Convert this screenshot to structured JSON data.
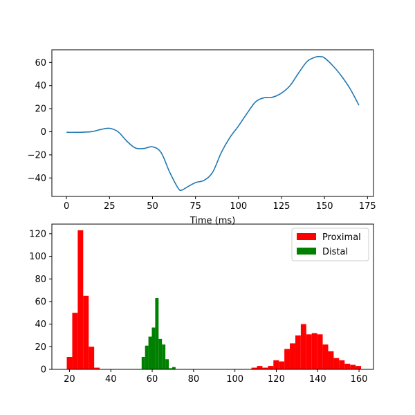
{
  "chart_data": [
    {
      "type": "line",
      "xlabel": "Time (ms)",
      "ylabel": "",
      "xlim": [
        -8.5,
        178.5
      ],
      "ylim": [
        -56,
        71
      ],
      "xticks": [
        0,
        25,
        50,
        75,
        100,
        125,
        150,
        175
      ],
      "yticks": [
        -40,
        -20,
        0,
        20,
        40,
        60
      ],
      "series": [
        {
          "color": "#1f77b4",
          "x": [
            0,
            5,
            10,
            15,
            20,
            25,
            30,
            35,
            40,
            45,
            50,
            55,
            60,
            65,
            67,
            70,
            75,
            80,
            85,
            90,
            95,
            100,
            105,
            110,
            115,
            120,
            125,
            130,
            135,
            140,
            145,
            148,
            150,
            155,
            160,
            165,
            170
          ],
          "y": [
            -0.5,
            -0.5,
            -0.3,
            0.2,
            2,
            3,
            0,
            -8,
            -14,
            -14.5,
            -13,
            -18,
            -35,
            -49,
            -50.5,
            -48,
            -44,
            -42,
            -35,
            -18,
            -5,
            5,
            16,
            26,
            29.5,
            30,
            33.5,
            40,
            51,
            61,
            64.8,
            65,
            64,
            57,
            48,
            37,
            23
          ]
        }
      ]
    },
    {
      "type": "bar",
      "histogram": true,
      "xlabel": "",
      "ylabel": "",
      "xlim": [
        11.5,
        167
      ],
      "ylim": [
        0,
        128.5
      ],
      "xticks": [
        20,
        40,
        60,
        80,
        100,
        120,
        140,
        160
      ],
      "yticks": [
        0,
        20,
        40,
        60,
        80,
        100,
        120
      ],
      "legend": "top-right",
      "series": [
        {
          "name": "Proximal",
          "color": "#ff0000",
          "bin_width": 2.65,
          "bins": [
            [
              18.7,
              11
            ],
            [
              21.35,
              50
            ],
            [
              24.0,
              123
            ],
            [
              26.65,
              65
            ],
            [
              29.3,
              20
            ],
            [
              31.95,
              1.5
            ],
            [
              108.0,
              1.5
            ],
            [
              110.65,
              3
            ],
            [
              113.3,
              1.5
            ],
            [
              115.95,
              3
            ],
            [
              118.6,
              8
            ],
            [
              121.25,
              7
            ],
            [
              123.9,
              18
            ],
            [
              126.55,
              23
            ],
            [
              129.2,
              30
            ],
            [
              131.85,
              40
            ],
            [
              134.5,
              31
            ],
            [
              137.15,
              32
            ],
            [
              139.8,
              31
            ],
            [
              142.45,
              22
            ],
            [
              145.1,
              16
            ],
            [
              147.75,
              10
            ],
            [
              150.4,
              8
            ],
            [
              153.05,
              5
            ],
            [
              155.7,
              4
            ],
            [
              158.35,
              3
            ]
          ]
        },
        {
          "name": "Distal",
          "color": "#008000",
          "bin_width": 1.64,
          "bins": [
            [
              54.9,
              11
            ],
            [
              56.54,
              21
            ],
            [
              58.18,
              29
            ],
            [
              59.82,
              37
            ],
            [
              61.46,
              63
            ],
            [
              63.1,
              27
            ],
            [
              64.74,
              22
            ],
            [
              66.38,
              9
            ],
            [
              68.02,
              1
            ],
            [
              69.66,
              2
            ]
          ]
        }
      ]
    }
  ]
}
